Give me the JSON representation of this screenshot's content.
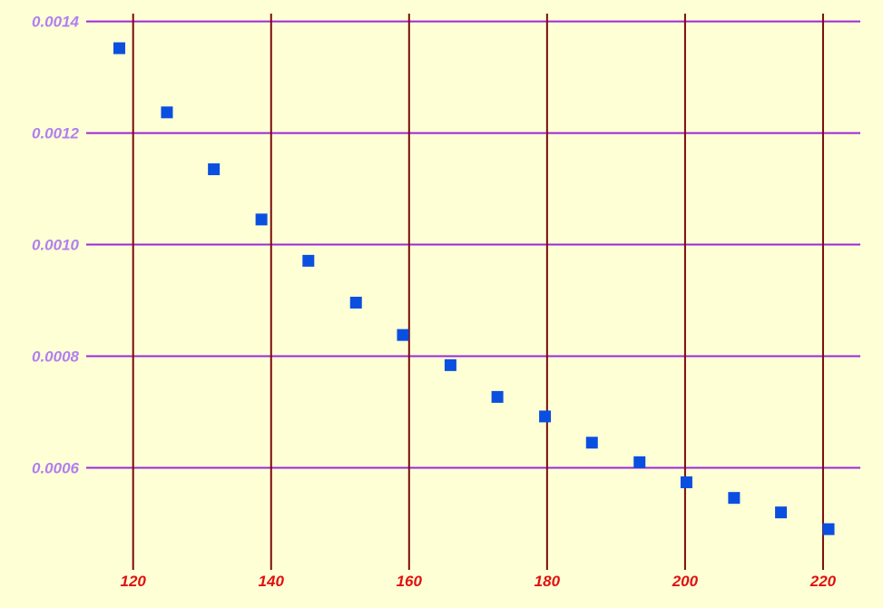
{
  "chart_data": {
    "type": "scatter",
    "x": [
      118.0,
      124.9,
      131.7,
      138.6,
      145.4,
      152.3,
      159.1,
      166.0,
      172.8,
      179.7,
      186.5,
      193.4,
      200.2,
      207.1,
      213.9,
      220.8
    ],
    "y": [
      0.001352,
      0.001237,
      0.001135,
      0.001045,
      0.000971,
      0.000896,
      0.000838,
      0.000784,
      0.000727,
      0.000692,
      0.000645,
      0.00061,
      0.000574,
      0.000546,
      0.00052,
      0.00049
    ],
    "xlim": [
      113.2,
      225.4
    ],
    "ylim": [
      0.00043,
      0.001414
    ],
    "x_ticks": [
      120,
      140,
      160,
      180,
      200,
      220
    ],
    "x_tick_labels": [
      "120",
      "140",
      "160",
      "180",
      "200",
      "220"
    ],
    "y_ticks": [
      0.0006,
      0.0008,
      0.001,
      0.0012,
      0.0014
    ],
    "y_tick_labels": [
      "0.0006",
      "0.0008",
      "0.0010",
      "0.0012",
      "0.0014"
    ],
    "grid": true,
    "title": "",
    "xlabel": "",
    "ylabel": "",
    "colors": {
      "background": "#ffffd6",
      "marker": "#0a4fe0",
      "vertical_grid": "#7a0a0a",
      "horizontal_grid": "#9a28d8",
      "x_tick_text": "#e01010",
      "y_tick_text": "#b080f0"
    }
  }
}
